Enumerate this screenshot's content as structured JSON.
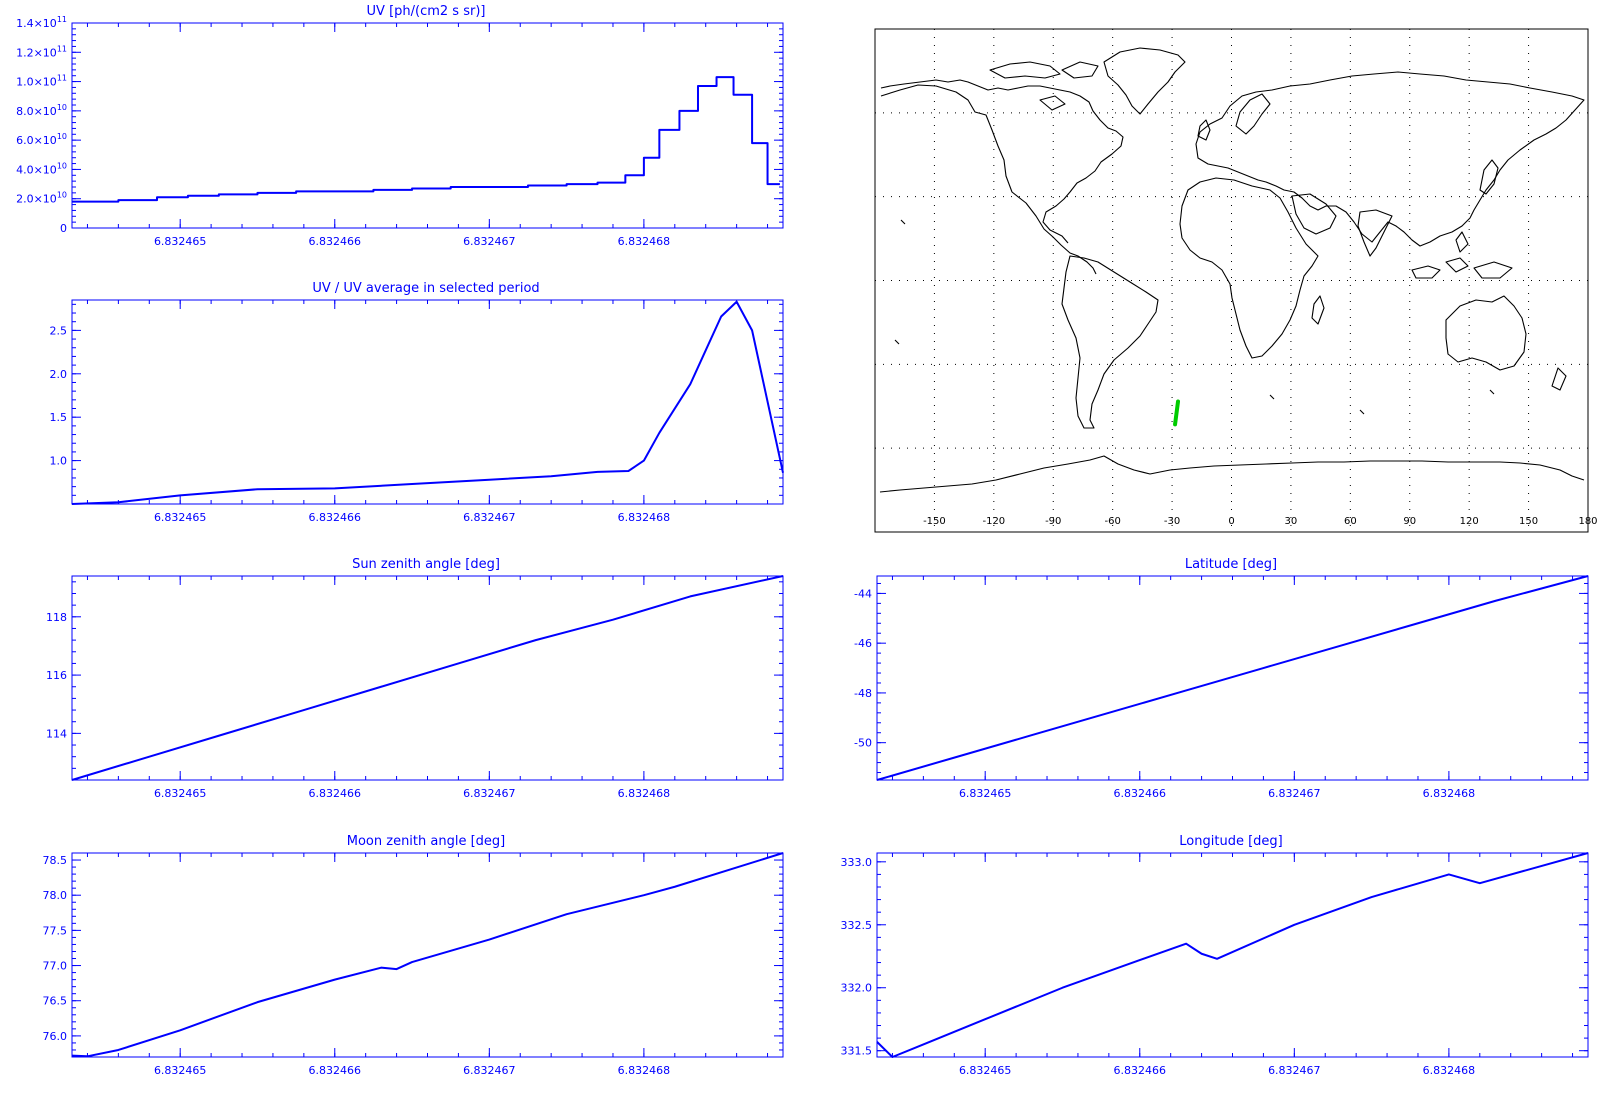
{
  "chart_data": [
    {
      "id": "uv",
      "type": "line",
      "step": true,
      "title": "UV [ph/(cm2 s sr)]",
      "xlim": [
        6.8324643,
        6.8324689
      ],
      "ylim": [
        0,
        140000000000.0
      ],
      "xticks": [
        6.832465,
        6.832466,
        6.832467,
        6.832468
      ],
      "xtick_labels": [
        "6.832465",
        "6.832466",
        "6.832467",
        "6.832468"
      ],
      "yticks": [
        0,
        20000000000.0,
        40000000000.0,
        60000000000.0,
        80000000000.0,
        100000000000.0,
        120000000000.0,
        140000000000.0
      ],
      "ytick_labels": [
        {
          "base": "0",
          "exp": ""
        },
        {
          "base": "2.0×10",
          "exp": "10"
        },
        {
          "base": "4.0×10",
          "exp": "10"
        },
        {
          "base": "6.0×10",
          "exp": "10"
        },
        {
          "base": "8.0×10",
          "exp": "10"
        },
        {
          "base": "1.0×10",
          "exp": "11"
        },
        {
          "base": "1.2×10",
          "exp": "11"
        },
        {
          "base": "1.4×10",
          "exp": "11"
        }
      ],
      "x": [
        6.8324643,
        6.8324644,
        6.8324646,
        6.83246485,
        6.83246505,
        6.83246525,
        6.8324655,
        6.83246575,
        6.832466,
        6.83246625,
        6.8324665,
        6.83246675,
        6.832467,
        6.83246725,
        6.8324675,
        6.8324677,
        6.83246788,
        6.832468,
        6.8324681,
        6.83246823,
        6.83246835,
        6.83246847,
        6.83246858,
        6.8324687,
        6.8324688,
        6.83246888
      ],
      "y": [
        18000000000.0,
        18000000000.0,
        19000000000.0,
        21000000000.0,
        22000000000.0,
        23000000000.0,
        24000000000.0,
        25000000000.0,
        25000000000.0,
        26000000000.0,
        27000000000.0,
        28000000000.0,
        28000000000.0,
        29000000000.0,
        30000000000.0,
        31000000000.0,
        36000000000.0,
        48000000000.0,
        67000000000.0,
        80000000000.0,
        97000000000.0,
        103000000000.0,
        91000000000.0,
        58000000000.0,
        30000000000.0,
        30000000000.0
      ]
    },
    {
      "id": "ratio",
      "type": "line",
      "title": "UV / UV average in selected period",
      "xlim": [
        6.8324643,
        6.8324689
      ],
      "ylim": [
        0.5,
        2.85
      ],
      "xticks": [
        6.832465,
        6.832466,
        6.832467,
        6.832468
      ],
      "xtick_labels": [
        "6.832465",
        "6.832466",
        "6.832467",
        "6.832468"
      ],
      "yticks": [
        1.0,
        1.5,
        2.0,
        2.5
      ],
      "ytick_labels": [
        "1.0",
        "1.5",
        "2.0",
        "2.5"
      ],
      "x": [
        6.8324643,
        6.8324646,
        6.832465,
        6.8324655,
        6.832466,
        6.8324665,
        6.832467,
        6.8324674,
        6.8324677,
        6.8324679,
        6.832468,
        6.8324681,
        6.8324683,
        6.8324684,
        6.8324685,
        6.8324686,
        6.8324687,
        6.8324689
      ],
      "y": [
        0.5,
        0.52,
        0.6,
        0.67,
        0.68,
        0.73,
        0.78,
        0.82,
        0.87,
        0.88,
        1.0,
        1.32,
        1.88,
        2.27,
        2.66,
        2.83,
        2.5,
        0.86
      ]
    },
    {
      "id": "sza",
      "type": "line",
      "title": "Sun zenith angle [deg]",
      "xlim": [
        6.8324643,
        6.8324689
      ],
      "ylim": [
        112.4,
        119.4
      ],
      "xticks": [
        6.832465,
        6.832466,
        6.832467,
        6.832468
      ],
      "xtick_labels": [
        "6.832465",
        "6.832466",
        "6.832467",
        "6.832468"
      ],
      "yticks": [
        114,
        116,
        118
      ],
      "ytick_labels": [
        "114",
        "116",
        "118"
      ],
      "x": [
        6.8324643,
        6.8324648,
        6.8324653,
        6.8324658,
        6.8324663,
        6.8324668,
        6.8324673,
        6.8324678,
        6.8324683,
        6.8324689
      ],
      "y": [
        112.4,
        113.2,
        114.0,
        114.8,
        115.6,
        116.4,
        117.2,
        117.9,
        118.7,
        119.4
      ]
    },
    {
      "id": "moon",
      "type": "line",
      "title": "Moon zenith angle [deg]",
      "xlim": [
        6.8324643,
        6.8324689
      ],
      "ylim": [
        75.7,
        78.6
      ],
      "xticks": [
        6.832465,
        6.832466,
        6.832467,
        6.832468
      ],
      "xtick_labels": [
        "6.832465",
        "6.832466",
        "6.832467",
        "6.832468"
      ],
      "yticks": [
        76.0,
        76.5,
        77.0,
        77.5,
        78.0,
        78.5
      ],
      "ytick_labels": [
        "76.0",
        "76.5",
        "77.0",
        "77.5",
        "78.0",
        "78.5"
      ],
      "x": [
        6.8324643,
        6.8324644,
        6.8324646,
        6.832465,
        6.8324655,
        6.832466,
        6.8324663,
        6.8324664,
        6.8324665,
        6.832467,
        6.8324675,
        6.832468,
        6.8324682,
        6.8324689
      ],
      "y": [
        75.72,
        75.71,
        75.8,
        76.08,
        76.48,
        76.8,
        76.97,
        76.95,
        77.05,
        77.37,
        77.73,
        78.0,
        78.12,
        78.6
      ]
    },
    {
      "id": "lat",
      "type": "line",
      "title": "Latitude [deg]",
      "xlim": [
        6.8324643,
        6.8324689
      ],
      "ylim": [
        -51.5,
        -43.3
      ],
      "xticks": [
        6.832465,
        6.832466,
        6.832467,
        6.832468
      ],
      "xtick_labels": [
        "6.832465",
        "6.832466",
        "6.832467",
        "6.832468"
      ],
      "yticks": [
        -50,
        -48,
        -46,
        -44
      ],
      "ytick_labels": [
        "-50",
        "-48",
        "-46",
        "-44"
      ],
      "x": [
        6.8324643,
        6.8324648,
        6.8324653,
        6.8324658,
        6.8324663,
        6.8324668,
        6.8324673,
        6.8324678,
        6.8324683,
        6.8324689
      ],
      "y": [
        -51.5,
        -50.6,
        -49.7,
        -48.8,
        -47.9,
        -47.0,
        -46.1,
        -45.2,
        -44.3,
        -43.3
      ]
    },
    {
      "id": "lon",
      "type": "line",
      "title": "Longitude [deg]",
      "xlim": [
        6.8324643,
        6.8324689
      ],
      "ylim": [
        331.45,
        333.07
      ],
      "xticks": [
        6.832465,
        6.832466,
        6.832467,
        6.832468
      ],
      "xtick_labels": [
        "6.832465",
        "6.832466",
        "6.832467",
        "6.832468"
      ],
      "yticks": [
        331.5,
        332.0,
        332.5,
        333.0
      ],
      "ytick_labels": [
        "331.5",
        "332.0",
        "332.5",
        "333.0"
      ],
      "x": [
        6.8324643,
        6.8324644,
        6.8324646,
        6.832465,
        6.8324655,
        6.832466,
        6.8324663,
        6.8324664,
        6.8324665,
        6.832467,
        6.8324675,
        6.832468,
        6.8324682,
        6.8324689
      ],
      "y": [
        331.57,
        331.45,
        331.55,
        331.75,
        332.0,
        332.22,
        332.35,
        332.27,
        332.23,
        332.5,
        332.72,
        332.9,
        332.83,
        333.07
      ]
    }
  ],
  "map": {
    "xlim": [
      -180,
      180
    ],
    "ylim": [
      -90,
      90
    ],
    "xticks": [
      -150,
      -120,
      -90,
      -60,
      -30,
      0,
      30,
      60,
      90,
      120,
      150,
      180
    ],
    "xtick_labels": [
      "-150",
      "-120",
      "-90",
      "-60",
      "-30",
      "0",
      "30",
      "60",
      "90",
      "120",
      "150",
      "180"
    ],
    "grid_lon": [
      -150,
      -120,
      -90,
      -60,
      -30,
      0,
      30,
      60,
      90,
      120,
      150
    ],
    "grid_lat": [
      -60,
      -30,
      0,
      30,
      60
    ],
    "track_color": "#00cc00",
    "track": {
      "lon": [
        -28.5,
        -27.0
      ],
      "lat": [
        -51.5,
        -43.3
      ]
    }
  },
  "colors": {
    "plot": "#0000ff",
    "map": "#000000",
    "track": "#00cc00"
  }
}
